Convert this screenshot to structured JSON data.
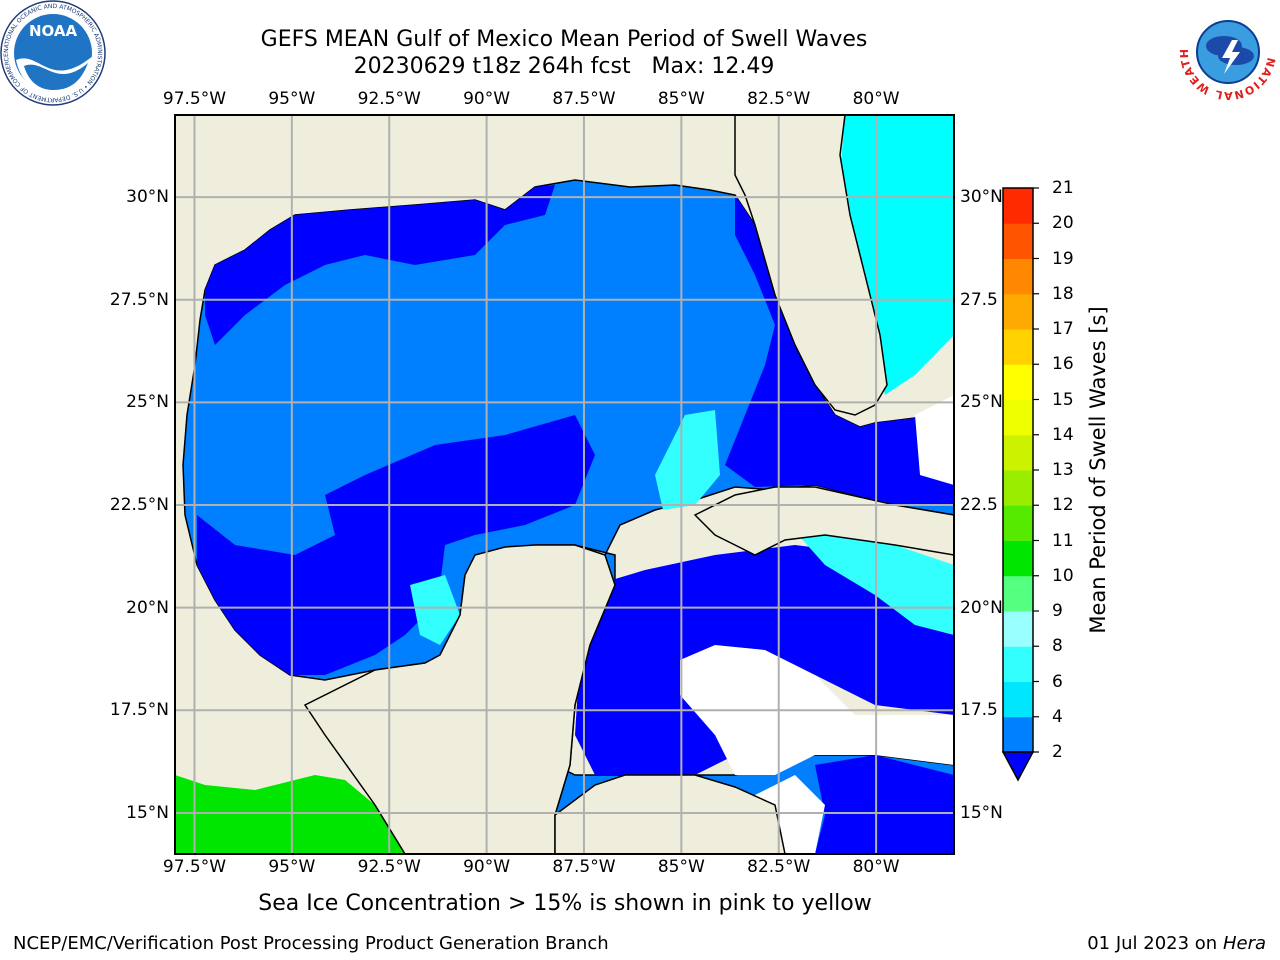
{
  "header": {
    "title_line1": "GEFS MEAN Gulf of Mexico Mean Period of Swell Waves",
    "title_line2": "20230629 t18z 264h fcst   Max: 12.49"
  },
  "logos": {
    "noaa_text": "NOAA",
    "noaa_ring": "NATIONAL OCEANIC AND ATMOSPHERIC ADMINISTRATION • U.S. DEPARTMENT OF COMMERCE •",
    "nws_ring": "NATIONAL WEATHER SERVICE"
  },
  "map": {
    "lon_labels": [
      "97.5°W",
      "95°W",
      "92.5°W",
      "90°W",
      "87.5°W",
      "85°W",
      "82.5°W",
      "80°W"
    ],
    "lon_values": [
      -97.5,
      -95,
      -92.5,
      -90,
      -87.5,
      -85,
      -82.5,
      -80
    ],
    "lat_labels_left": [
      "30°N",
      "27.5°N",
      "25°N",
      "22.5°N",
      "20°N",
      "17.5°N",
      "15°N"
    ],
    "lat_labels_right": [
      "30°N",
      "27.5",
      "25°N",
      "22.5",
      "20°N",
      "17.5",
      "15°N"
    ],
    "lat_values": [
      30,
      27.5,
      25,
      22.5,
      20,
      17.5,
      15
    ],
    "lon_range": [
      -98,
      -78
    ],
    "lat_range": [
      14,
      32
    ],
    "gridlines": true,
    "colors": {
      "land": "#efeedc",
      "level_2_4": "#0080ff",
      "level_below_2": "#0000ff",
      "level_4_6": "#00ffff",
      "level_8_11": "#00e600",
      "grid": "#b0b0b0"
    }
  },
  "colorbar": {
    "label": "Mean Period of Swell Waves [s]",
    "ticks": [
      "2",
      "4",
      "6",
      "8",
      "9",
      "10",
      "11",
      "12",
      "13",
      "14",
      "15",
      "16",
      "17",
      "18",
      "19",
      "20",
      "21"
    ],
    "colors": [
      "#0080ff",
      "#00e6ff",
      "#33ffff",
      "#99ffff",
      "#55ff80",
      "#00e600",
      "#55ea00",
      "#99ee00",
      "#ccf200",
      "#eeff00",
      "#ffff00",
      "#ffd200",
      "#ffaa00",
      "#ff8800",
      "#ff5500",
      "#ff2a00",
      "#ff0000"
    ],
    "extend_color": "#0000ff"
  },
  "footer": {
    "note": "Sea Ice Concentration > 15% is shown in pink to yellow",
    "credit_left": "NCEP/EMC/Verification Post Processing Product Generation Branch",
    "credit_right_date": "01 Jul 2023 on ",
    "credit_right_host": "Hera"
  }
}
